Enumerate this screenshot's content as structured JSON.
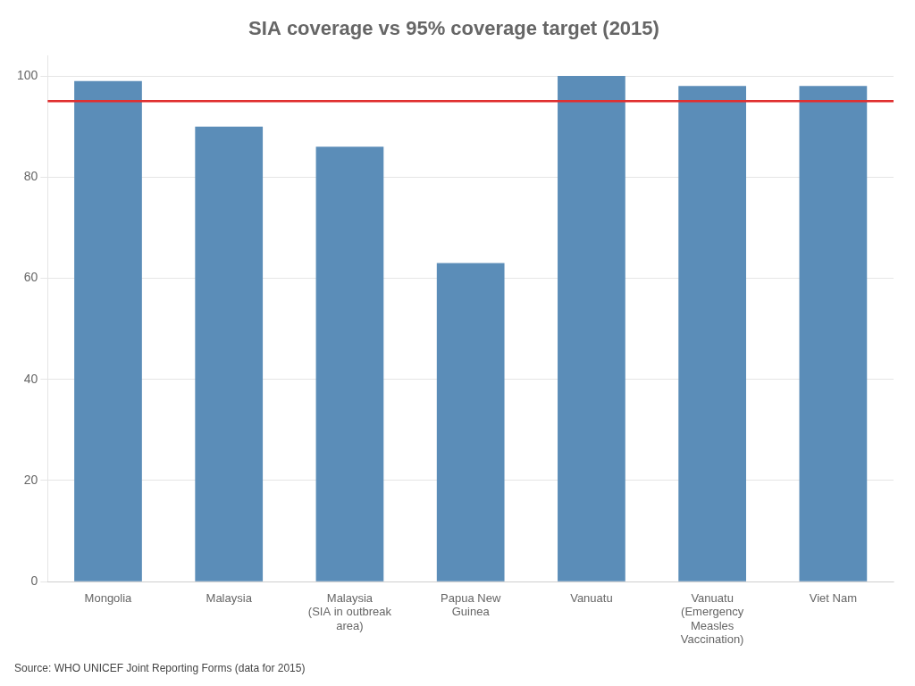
{
  "chart_data": {
    "type": "bar",
    "title": "SIA coverage vs 95% coverage target (2015)",
    "source": "Source: WHO UNICEF Joint Reporting Forms (data for 2015)",
    "categories": [
      "Mongolia",
      "Malaysia",
      "Malaysia\n(SIA in outbreak\narea)",
      "Papua New\nGuinea",
      "Vanuatu",
      "Vanuatu\n(Emergency\nMeasles\nVaccination)",
      "Viet Nam"
    ],
    "values": [
      99,
      90,
      86,
      63,
      100,
      98,
      98
    ],
    "color": "#5B8DB8",
    "target_line": {
      "value": 95,
      "color": "#E03030"
    },
    "ylim": [
      0,
      104
    ],
    "yticks": [
      0,
      20,
      40,
      60,
      80,
      100
    ],
    "grid": true
  }
}
